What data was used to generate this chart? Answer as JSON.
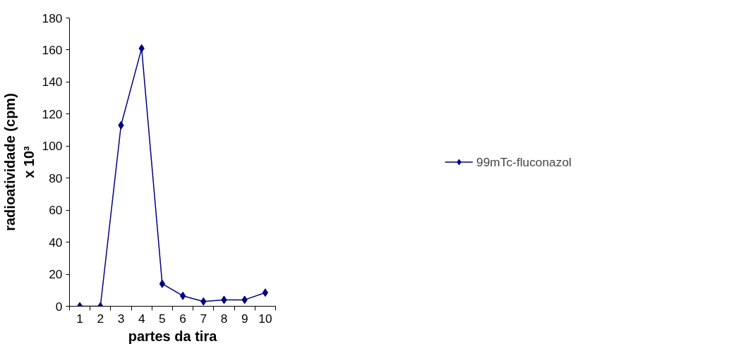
{
  "chart_data": {
    "type": "line",
    "xlabel": "partes da tira",
    "ylabel": "radioatividade (cpm)\nx 10³",
    "categories": [
      "1",
      "2",
      "3",
      "4",
      "5",
      "6",
      "7",
      "8",
      "9",
      "10"
    ],
    "series": [
      {
        "name": "99mTc-fluconazol",
        "color": "#000080",
        "values": [
          0,
          0,
          113,
          161,
          14,
          6.5,
          3,
          4,
          4,
          8.5
        ]
      }
    ],
    "ylim": [
      0,
      180
    ],
    "yticks": [
      0,
      20,
      40,
      60,
      80,
      100,
      120,
      140,
      160,
      180
    ],
    "grid": false,
    "legend": "right",
    "marker": "diamond",
    "line_style": "solid"
  }
}
